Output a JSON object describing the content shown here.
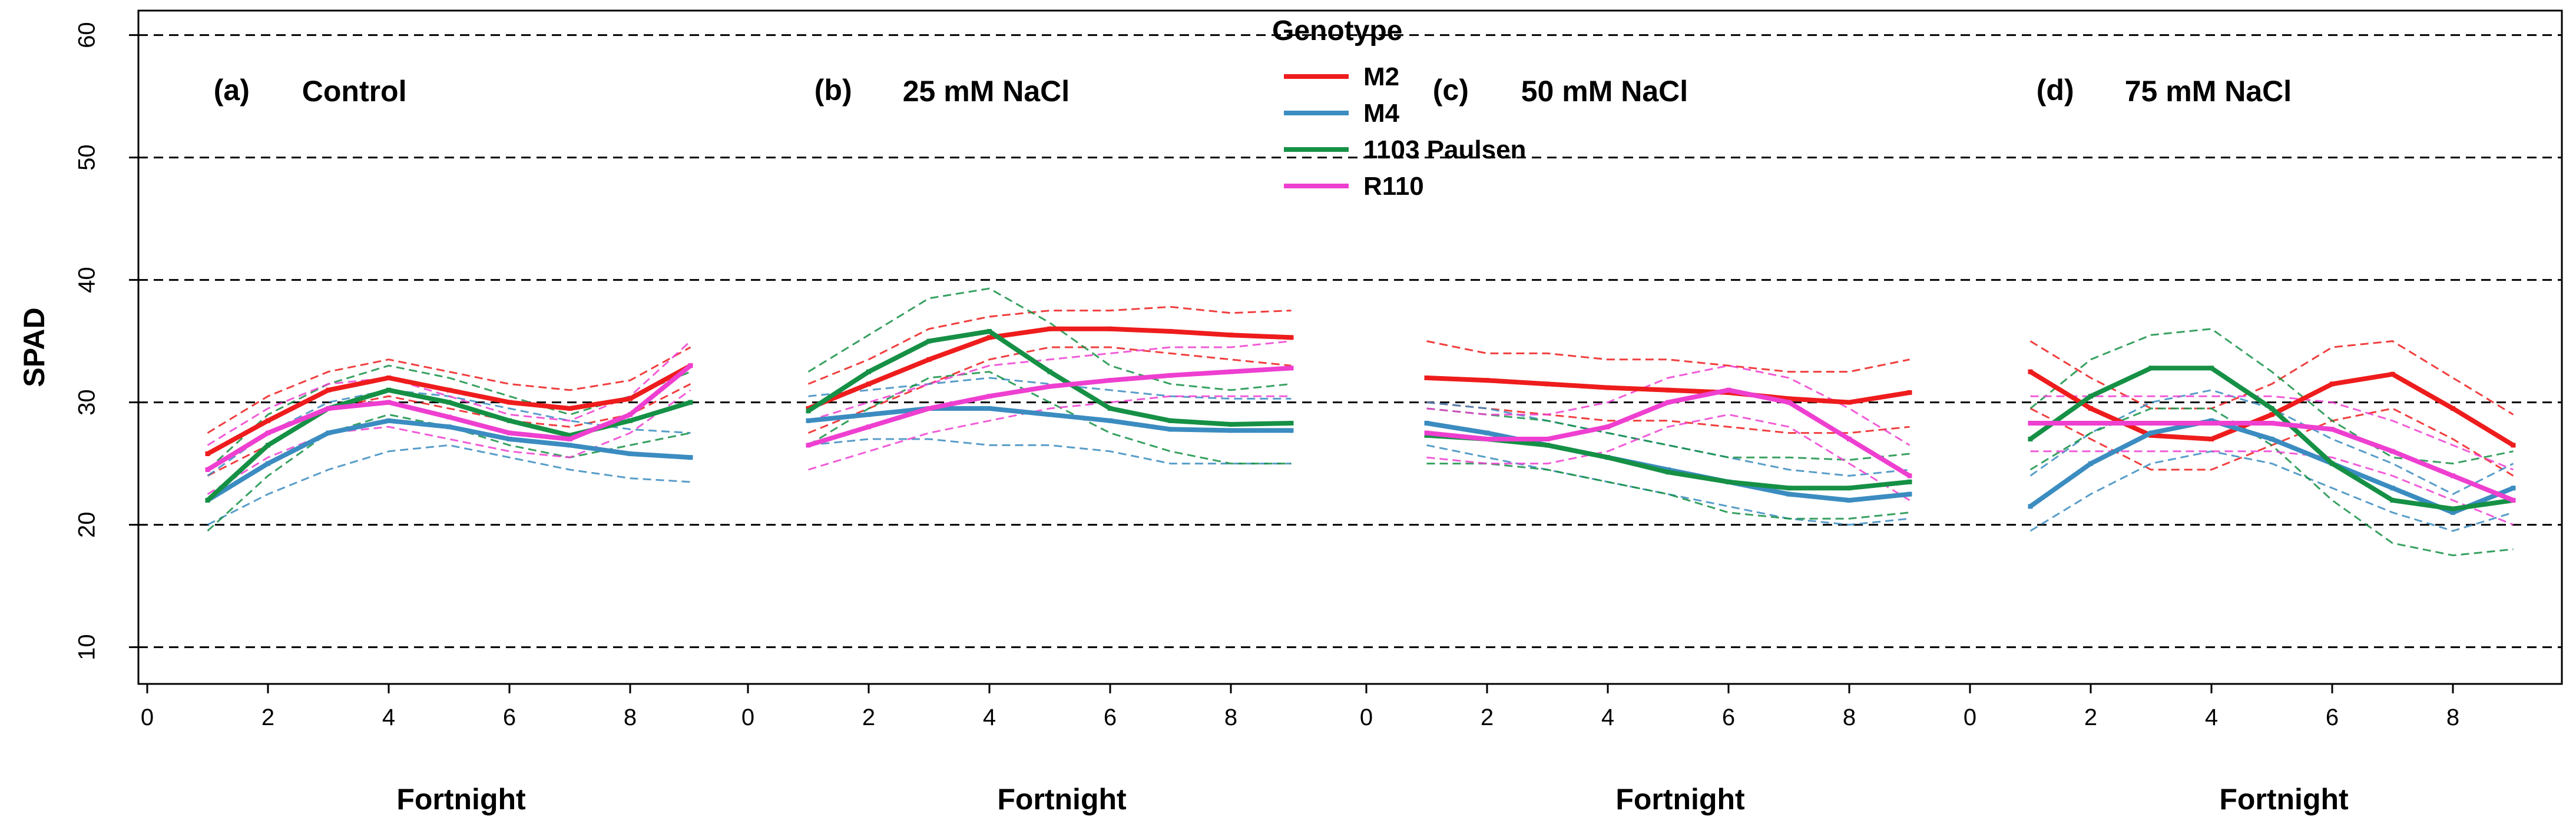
{
  "chart_data": {
    "type": "line",
    "ylabel": "SPAD",
    "xlabel": "Fortnight",
    "ylim": [
      7,
      62
    ],
    "xlim": [
      0,
      10
    ],
    "y_ticks": [
      10,
      20,
      30,
      40,
      50,
      60
    ],
    "x_ticks": [
      0,
      2,
      4,
      6,
      8
    ],
    "gridlines": "horizontal dashed",
    "legend": {
      "title": "Genotype",
      "placement": "top-center",
      "entries": [
        {
          "name": "M2",
          "color": "#ee1c1c"
        },
        {
          "name": "M4",
          "color": "#3b8cc0"
        },
        {
          "name": "1103 Paulsen",
          "color": "#159045"
        },
        {
          "name": "R110",
          "color": "#ee3fd0"
        }
      ]
    },
    "panels": [
      {
        "tag": "(a)",
        "title": "Control",
        "x": [
          1,
          2,
          3,
          4,
          5,
          6,
          7,
          8,
          9
        ],
        "series": [
          {
            "name": "M2",
            "values": [
              25.8,
              28.5,
              31.0,
              32.0,
              31.0,
              30.0,
              29.5,
              30.3,
              33.0
            ],
            "lower": [
              24.0,
              26.5,
              29.5,
              30.5,
              29.5,
              28.5,
              28.0,
              29.0,
              31.5
            ],
            "upper": [
              27.5,
              30.5,
              32.5,
              33.5,
              32.5,
              31.5,
              31.0,
              31.8,
              34.5
            ]
          },
          {
            "name": "M4",
            "values": [
              22.0,
              25.0,
              27.5,
              28.5,
              28.0,
              27.0,
              26.5,
              25.8,
              25.5
            ],
            "lower": [
              20.0,
              22.5,
              24.5,
              26.0,
              26.5,
              25.5,
              24.5,
              23.8,
              23.5
            ],
            "upper": [
              24.0,
              27.5,
              30.0,
              31.0,
              30.5,
              29.5,
              28.5,
              27.8,
              27.5
            ]
          },
          {
            "name": "1103 Paulsen",
            "values": [
              22.0,
              26.5,
              29.5,
              31.0,
              30.0,
              28.5,
              27.3,
              28.5,
              30.0
            ],
            "lower": [
              19.5,
              24.0,
              27.5,
              29.0,
              28.0,
              26.5,
              25.5,
              26.5,
              27.5
            ],
            "upper": [
              24.5,
              29.0,
              31.5,
              33.0,
              32.0,
              30.5,
              29.0,
              30.5,
              32.5
            ]
          },
          {
            "name": "R110",
            "values": [
              24.5,
              27.5,
              29.5,
              30.0,
              28.8,
              27.5,
              27.0,
              29.0,
              33.0
            ],
            "lower": [
              22.5,
              25.5,
              27.5,
              28.0,
              27.0,
              26.0,
              25.5,
              27.5,
              31.0
            ],
            "upper": [
              26.5,
              29.5,
              31.5,
              32.0,
              30.5,
              29.0,
              28.5,
              30.5,
              35.0
            ]
          }
        ]
      },
      {
        "tag": "(b)",
        "title": "25 mM NaCl",
        "x": [
          1,
          2,
          3,
          4,
          5,
          6,
          7,
          8,
          9
        ],
        "series": [
          {
            "name": "M2",
            "values": [
              29.5,
              31.5,
              33.5,
              35.3,
              36.0,
              36.0,
              35.8,
              35.5,
              35.3
            ],
            "lower": [
              27.5,
              29.5,
              31.5,
              33.5,
              34.5,
              34.5,
              34.0,
              33.5,
              33.0
            ],
            "upper": [
              31.5,
              33.5,
              36.0,
              37.0,
              37.5,
              37.5,
              37.8,
              37.3,
              37.5
            ]
          },
          {
            "name": "M4",
            "values": [
              28.5,
              29.0,
              29.5,
              29.5,
              29.0,
              28.5,
              27.8,
              27.7,
              27.7
            ],
            "lower": [
              26.5,
              27.0,
              27.0,
              26.5,
              26.5,
              26.0,
              25.0,
              25.0,
              25.0
            ],
            "upper": [
              30.5,
              31.0,
              31.5,
              32.0,
              31.5,
              31.0,
              30.5,
              30.3,
              30.3
            ]
          },
          {
            "name": "1103 Paulsen",
            "values": [
              29.3,
              32.5,
              35.0,
              35.8,
              32.5,
              29.5,
              28.5,
              28.2,
              28.3
            ],
            "lower": [
              26.5,
              29.5,
              32.0,
              32.5,
              30.0,
              27.5,
              26.0,
              25.0,
              25.0
            ],
            "upper": [
              32.5,
              35.5,
              38.5,
              39.3,
              36.5,
              33.0,
              31.5,
              31.0,
              31.5
            ]
          },
          {
            "name": "R110",
            "values": [
              26.5,
              28.0,
              29.5,
              30.5,
              31.3,
              31.8,
              32.2,
              32.5,
              32.8
            ],
            "lower": [
              24.5,
              26.0,
              27.5,
              28.5,
              29.5,
              30.0,
              30.5,
              30.5,
              30.5
            ],
            "upper": [
              28.5,
              30.0,
              31.5,
              33.0,
              33.5,
              34.0,
              34.5,
              34.5,
              35.0
            ]
          }
        ]
      },
      {
        "tag": "(c)",
        "title": "50 mM NaCl",
        "x": [
          1,
          2,
          3,
          4,
          5,
          6,
          7,
          8,
          9
        ],
        "series": [
          {
            "name": "M2",
            "values": [
              32.0,
              31.8,
              31.5,
              31.2,
              31.0,
              30.8,
              30.3,
              30.0,
              30.8
            ],
            "lower": [
              30.0,
              29.5,
              29.0,
              28.5,
              28.5,
              28.0,
              27.5,
              27.5,
              28.0
            ],
            "upper": [
              35.0,
              34.0,
              34.0,
              33.5,
              33.5,
              33.0,
              32.5,
              32.5,
              33.5
            ]
          },
          {
            "name": "M4",
            "values": [
              28.3,
              27.5,
              26.5,
              25.5,
              24.5,
              23.5,
              22.5,
              22.0,
              22.5
            ],
            "lower": [
              26.5,
              25.5,
              24.5,
              23.5,
              22.5,
              21.5,
              20.5,
              20.0,
              20.5
            ],
            "upper": [
              30.0,
              29.5,
              28.5,
              27.5,
              26.5,
              25.5,
              24.5,
              24.0,
              24.5
            ]
          },
          {
            "name": "1103 Paulsen",
            "values": [
              27.3,
              27.0,
              26.5,
              25.5,
              24.3,
              23.5,
              23.0,
              23.0,
              23.5
            ],
            "lower": [
              25.0,
              25.0,
              24.5,
              23.5,
              22.5,
              21.0,
              20.5,
              20.5,
              21.0
            ],
            "upper": [
              29.5,
              29.0,
              28.5,
              27.5,
              26.5,
              25.5,
              25.5,
              25.3,
              25.8
            ]
          },
          {
            "name": "R110",
            "values": [
              27.5,
              27.0,
              27.0,
              28.0,
              30.0,
              31.0,
              30.0,
              27.0,
              24.0
            ],
            "lower": [
              25.5,
              25.0,
              25.0,
              26.0,
              28.0,
              29.0,
              28.0,
              25.0,
              22.0
            ],
            "upper": [
              29.5,
              29.0,
              29.0,
              30.0,
              32.0,
              33.0,
              32.0,
              29.5,
              26.5
            ]
          }
        ]
      },
      {
        "tag": "(d)",
        "title": "75 mM NaCl",
        "x": [
          1,
          2,
          3,
          4,
          5,
          6,
          7,
          8,
          9
        ],
        "series": [
          {
            "name": "M2",
            "values": [
              32.5,
              29.5,
              27.3,
              27.0,
              29.0,
              31.5,
              32.3,
              29.5,
              26.5
            ],
            "lower": [
              29.5,
              27.0,
              24.5,
              24.5,
              26.5,
              28.5,
              29.5,
              27.0,
              24.0
            ],
            "upper": [
              35.0,
              32.0,
              29.5,
              29.5,
              31.5,
              34.5,
              35.0,
              32.0,
              29.0
            ]
          },
          {
            "name": "M4",
            "values": [
              21.5,
              25.0,
              27.5,
              28.5,
              27.0,
              25.0,
              23.0,
              21.0,
              23.0
            ],
            "lower": [
              19.5,
              22.5,
              25.0,
              26.0,
              25.0,
              23.0,
              21.0,
              19.5,
              21.0
            ],
            "upper": [
              24.0,
              27.5,
              30.0,
              31.0,
              29.5,
              27.0,
              25.0,
              22.5,
              25.0
            ]
          },
          {
            "name": "1103 Paulsen",
            "values": [
              27.0,
              30.5,
              32.8,
              32.8,
              29.5,
              25.0,
              22.0,
              21.3,
              22.0
            ],
            "lower": [
              24.5,
              27.5,
              29.5,
              29.5,
              26.5,
              22.0,
              18.5,
              17.5,
              18.0
            ],
            "upper": [
              29.5,
              33.5,
              35.5,
              36.0,
              32.5,
              28.5,
              25.5,
              25.0,
              26.0
            ]
          },
          {
            "name": "R110",
            "values": [
              28.3,
              28.3,
              28.3,
              28.3,
              28.3,
              27.8,
              26.0,
              24.0,
              22.0
            ],
            "lower": [
              26.0,
              26.0,
              26.0,
              26.0,
              26.0,
              25.5,
              24.0,
              22.0,
              20.0
            ],
            "upper": [
              30.5,
              30.5,
              30.5,
              30.5,
              30.5,
              30.0,
              28.5,
              26.5,
              24.5
            ]
          }
        ]
      }
    ]
  }
}
